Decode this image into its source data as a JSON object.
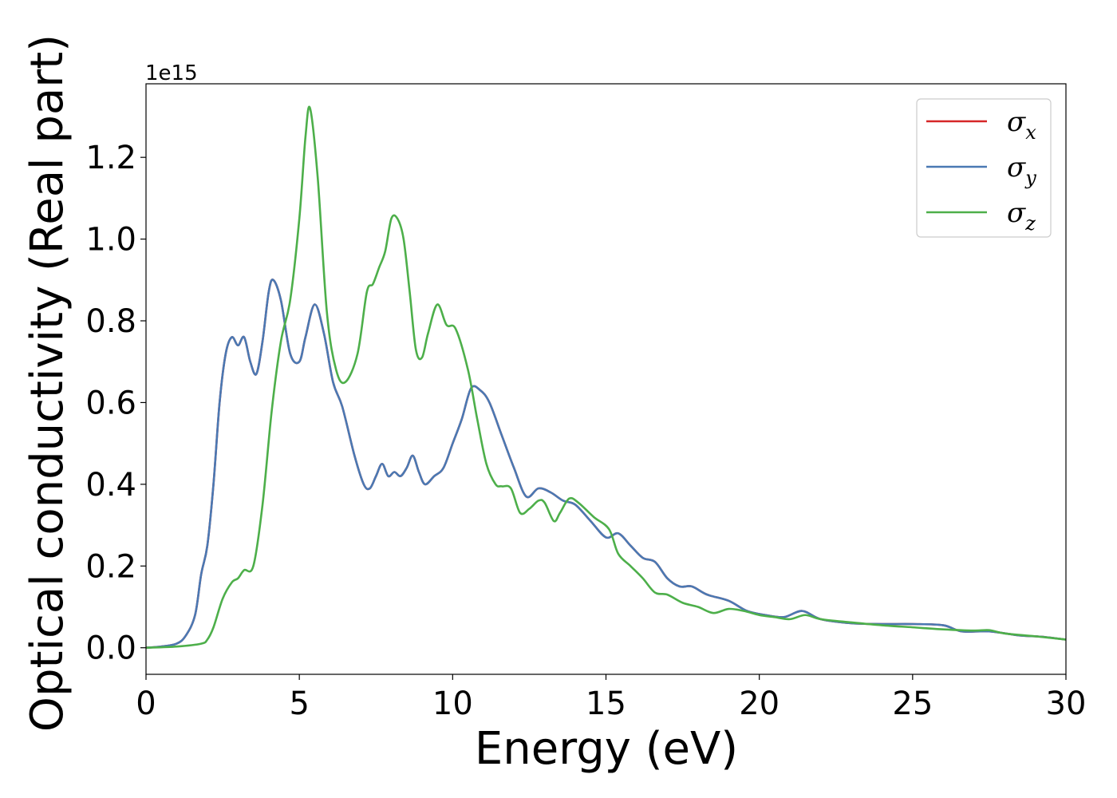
{
  "chart_data": {
    "type": "line",
    "xlabel": "Energy (eV)",
    "ylabel": "Optical conductivity (Real part)",
    "y_offset_label": "1e15",
    "xlim": [
      0,
      30
    ],
    "ylim": [
      -0.065,
      1.38
    ],
    "x_ticks": [
      0,
      5,
      10,
      15,
      20,
      25,
      30
    ],
    "x_tick_labels": [
      "0",
      "5",
      "10",
      "15",
      "20",
      "25",
      "30"
    ],
    "y_ticks": [
      0.0,
      0.2,
      0.4,
      0.6,
      0.8,
      1.0,
      1.2
    ],
    "y_tick_labels": [
      "0.0",
      "0.2",
      "0.4",
      "0.6",
      "0.8",
      "1.0",
      "1.2"
    ],
    "grid": false,
    "legend_position": "top-right",
    "series": [
      {
        "name": "σx",
        "symbol": "σ",
        "subscript": "x",
        "color": "#d62728",
        "x": [
          0,
          0.5,
          1.0,
          1.3,
          1.6,
          1.8,
          2.0,
          2.2,
          2.4,
          2.6,
          2.8,
          3.0,
          3.2,
          3.4,
          3.6,
          3.8,
          4.0,
          4.15,
          4.4,
          4.7,
          5.0,
          5.2,
          5.5,
          5.8,
          6.1,
          6.4,
          6.8,
          7.1,
          7.3,
          7.5,
          7.7,
          7.9,
          8.1,
          8.3,
          8.5,
          8.7,
          8.9,
          9.1,
          9.4,
          9.7,
          10.0,
          10.3,
          10.6,
          10.9,
          11.2,
          11.6,
          12.0,
          12.4,
          12.8,
          13.2,
          13.6,
          14.0,
          14.5,
          15.0,
          15.4,
          15.8,
          16.2,
          16.6,
          17.0,
          17.4,
          17.8,
          18.3,
          19.0,
          19.6,
          20.2,
          20.8,
          21.4,
          22.0,
          23.0,
          24.0,
          25.0,
          26.0,
          26.6,
          27.5,
          28.5,
          29.2,
          30.0
        ],
        "y": [
          0.0,
          0.003,
          0.01,
          0.03,
          0.08,
          0.18,
          0.25,
          0.4,
          0.6,
          0.72,
          0.76,
          0.74,
          0.76,
          0.7,
          0.67,
          0.75,
          0.87,
          0.9,
          0.85,
          0.72,
          0.7,
          0.76,
          0.84,
          0.77,
          0.65,
          0.59,
          0.47,
          0.4,
          0.39,
          0.42,
          0.45,
          0.42,
          0.43,
          0.42,
          0.44,
          0.47,
          0.43,
          0.4,
          0.42,
          0.44,
          0.5,
          0.56,
          0.635,
          0.63,
          0.6,
          0.52,
          0.44,
          0.37,
          0.39,
          0.38,
          0.36,
          0.35,
          0.31,
          0.27,
          0.28,
          0.25,
          0.22,
          0.21,
          0.17,
          0.15,
          0.15,
          0.13,
          0.115,
          0.09,
          0.08,
          0.075,
          0.09,
          0.07,
          0.06,
          0.058,
          0.058,
          0.055,
          0.04,
          0.04,
          0.03,
          0.027,
          0.02
        ]
      },
      {
        "name": "σy",
        "symbol": "σ",
        "subscript": "y",
        "color": "#4a79b3",
        "x": [
          0,
          0.5,
          1.0,
          1.3,
          1.6,
          1.8,
          2.0,
          2.2,
          2.4,
          2.6,
          2.8,
          3.0,
          3.2,
          3.4,
          3.6,
          3.8,
          4.0,
          4.15,
          4.4,
          4.7,
          5.0,
          5.2,
          5.5,
          5.8,
          6.1,
          6.4,
          6.8,
          7.1,
          7.3,
          7.5,
          7.7,
          7.9,
          8.1,
          8.3,
          8.5,
          8.7,
          8.9,
          9.1,
          9.4,
          9.7,
          10.0,
          10.3,
          10.6,
          10.9,
          11.2,
          11.6,
          12.0,
          12.4,
          12.8,
          13.2,
          13.6,
          14.0,
          14.5,
          15.0,
          15.4,
          15.8,
          16.2,
          16.6,
          17.0,
          17.4,
          17.8,
          18.3,
          19.0,
          19.6,
          20.2,
          20.8,
          21.4,
          22.0,
          23.0,
          24.0,
          25.0,
          26.0,
          26.6,
          27.5,
          28.5,
          29.2,
          30.0
        ],
        "y": [
          0.0,
          0.003,
          0.01,
          0.03,
          0.08,
          0.18,
          0.25,
          0.4,
          0.6,
          0.72,
          0.76,
          0.74,
          0.76,
          0.7,
          0.67,
          0.75,
          0.87,
          0.9,
          0.85,
          0.72,
          0.7,
          0.76,
          0.84,
          0.77,
          0.65,
          0.59,
          0.47,
          0.4,
          0.39,
          0.42,
          0.45,
          0.42,
          0.43,
          0.42,
          0.44,
          0.47,
          0.43,
          0.4,
          0.42,
          0.44,
          0.5,
          0.56,
          0.635,
          0.63,
          0.6,
          0.52,
          0.44,
          0.37,
          0.39,
          0.38,
          0.36,
          0.35,
          0.31,
          0.27,
          0.28,
          0.25,
          0.22,
          0.21,
          0.17,
          0.15,
          0.15,
          0.13,
          0.115,
          0.09,
          0.08,
          0.075,
          0.09,
          0.07,
          0.06,
          0.058,
          0.058,
          0.055,
          0.04,
          0.04,
          0.03,
          0.027,
          0.02
        ]
      },
      {
        "name": "σz",
        "symbol": "σ",
        "subscript": "z",
        "color": "#4daf4a",
        "x": [
          0,
          1.0,
          1.8,
          2.0,
          2.2,
          2.5,
          2.8,
          3.0,
          3.2,
          3.5,
          3.8,
          4.1,
          4.4,
          4.7,
          5.0,
          5.2,
          5.35,
          5.6,
          5.9,
          6.2,
          6.5,
          6.9,
          7.2,
          7.4,
          7.6,
          7.8,
          8.0,
          8.2,
          8.4,
          8.6,
          8.8,
          9.0,
          9.2,
          9.5,
          9.8,
          10.1,
          10.5,
          10.8,
          11.1,
          11.4,
          11.6,
          11.9,
          12.2,
          12.5,
          12.8,
          13.0,
          13.3,
          13.5,
          13.8,
          14.1,
          14.6,
          15.1,
          15.4,
          15.8,
          16.2,
          16.6,
          17.0,
          17.5,
          18.0,
          18.5,
          19.0,
          19.5,
          20.0,
          20.5,
          21.0,
          21.5,
          22.0,
          23.0,
          24.0,
          25.0,
          26.0,
          27.0,
          27.5,
          28.0,
          29.0,
          30.0
        ],
        "y": [
          0.0,
          0.003,
          0.01,
          0.02,
          0.05,
          0.12,
          0.16,
          0.17,
          0.19,
          0.2,
          0.35,
          0.58,
          0.75,
          0.85,
          1.05,
          1.25,
          1.32,
          1.15,
          0.82,
          0.68,
          0.65,
          0.72,
          0.87,
          0.89,
          0.93,
          0.97,
          1.05,
          1.05,
          1.0,
          0.87,
          0.73,
          0.71,
          0.77,
          0.84,
          0.79,
          0.78,
          0.68,
          0.56,
          0.45,
          0.4,
          0.395,
          0.39,
          0.33,
          0.34,
          0.36,
          0.355,
          0.31,
          0.33,
          0.365,
          0.355,
          0.32,
          0.29,
          0.23,
          0.2,
          0.17,
          0.135,
          0.13,
          0.11,
          0.1,
          0.085,
          0.095,
          0.09,
          0.08,
          0.075,
          0.07,
          0.08,
          0.07,
          0.062,
          0.055,
          0.05,
          0.045,
          0.042,
          0.043,
          0.035,
          0.028,
          0.02
        ]
      }
    ]
  }
}
